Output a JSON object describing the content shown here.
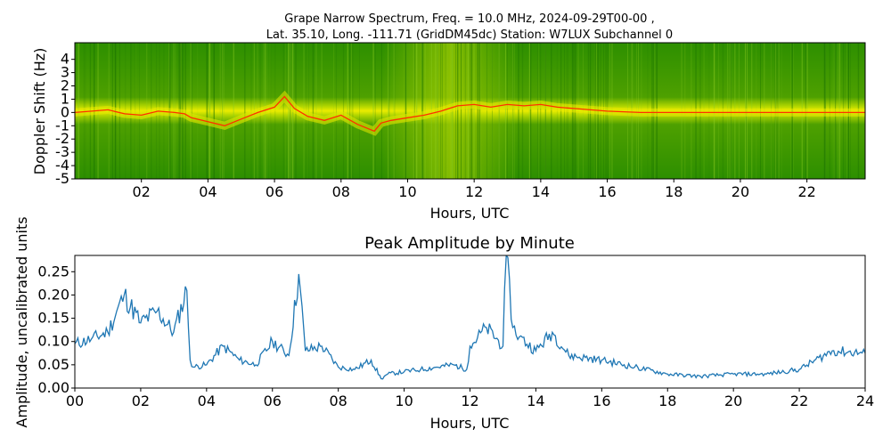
{
  "figure_title": {
    "line1": "Grape Narrow Spectrum, Freq. = 10.0 MHz, 2024-09-29T00-00 ,",
    "line2": "Lat.  35.10, Long. -111.71 (GridDM45dc) Station: W7LUX Subchannel 0"
  },
  "chart_data": [
    {
      "type": "heatmap",
      "title": "",
      "xlabel": "Hours, UTC",
      "ylabel": "Doppler Shift (Hz)",
      "xlim": [
        0,
        23.75
      ],
      "ylim": [
        -5,
        5
      ],
      "x_tick_labels": [
        "02",
        "04",
        "06",
        "08",
        "10",
        "12",
        "14",
        "16",
        "18",
        "20",
        "22"
      ],
      "x_tick_values": [
        2,
        4,
        6,
        8,
        10,
        12,
        14,
        16,
        18,
        20,
        22
      ],
      "y_tick_labels": [
        "4",
        "3",
        "2",
        "1",
        "0",
        "-1",
        "-2",
        "-3",
        "-4",
        "-5"
      ],
      "y_tick_values": [
        4,
        3,
        2,
        1,
        0,
        -1,
        -2,
        -3,
        -4,
        -5
      ],
      "colors": {
        "background": "#1e8a00",
        "mid": "#7fbf00",
        "high": "#e8e800",
        "peak": "#ff2000"
      },
      "doppler_trace": {
        "x": [
          0,
          0.5,
          1,
          1.5,
          2,
          2.5,
          3,
          3.3,
          3.5,
          4,
          4.5,
          5,
          5.5,
          6,
          6.3,
          6.6,
          7,
          7.5,
          8,
          8.5,
          9,
          9.2,
          9.5,
          10,
          10.5,
          11,
          11.5,
          12,
          12.5,
          13,
          13.5,
          14,
          14.5,
          15,
          16,
          17,
          18,
          19,
          20,
          21,
          22,
          23,
          23.75
        ],
        "y": [
          0.0,
          0.1,
          0.2,
          -0.1,
          -0.2,
          0.1,
          0.0,
          -0.1,
          -0.4,
          -0.7,
          -1.0,
          -0.5,
          0.0,
          0.4,
          1.2,
          0.3,
          -0.3,
          -0.6,
          -0.2,
          -0.9,
          -1.4,
          -0.8,
          -0.6,
          -0.4,
          -0.2,
          0.1,
          0.5,
          0.6,
          0.4,
          0.6,
          0.5,
          0.6,
          0.4,
          0.3,
          0.1,
          0.0,
          0.0,
          0.0,
          0.0,
          0.0,
          0.0,
          0.0,
          0.0
        ]
      }
    },
    {
      "type": "line",
      "title": "Peak Amplitude by Minute",
      "xlabel": "Hours, UTC",
      "ylabel": "Amplitude, uncalibrated units",
      "xlim": [
        0,
        24
      ],
      "ylim": [
        0,
        0.285
      ],
      "x_tick_labels": [
        "00",
        "02",
        "04",
        "06",
        "08",
        "10",
        "12",
        "14",
        "16",
        "18",
        "20",
        "22",
        "24"
      ],
      "x_tick_values": [
        0,
        2,
        4,
        6,
        8,
        10,
        12,
        14,
        16,
        18,
        20,
        22,
        24
      ],
      "y_tick_labels": [
        "0.00",
        "0.05",
        "0.10",
        "0.15",
        "0.20",
        "0.25"
      ],
      "y_tick_values": [
        0,
        0.05,
        0.1,
        0.15,
        0.2,
        0.25
      ],
      "line_color": "#1f77b4",
      "series": [
        {
          "x": [
            0,
            0.5,
            1,
            1.5,
            2,
            2.5,
            3,
            3.4,
            3.5,
            3.6,
            4,
            4.5,
            5,
            5.5,
            6,
            6.5,
            6.8,
            7,
            7.5,
            8,
            8.5,
            9,
            9.3,
            9.5,
            10,
            10.5,
            11,
            11.5,
            11.9,
            12,
            12.5,
            13,
            13.1,
            13.3,
            13.5,
            14,
            14.5,
            15,
            16,
            17,
            18,
            19,
            20,
            21,
            22,
            23,
            24
          ],
          "y": [
            0.095,
            0.105,
            0.12,
            0.2,
            0.14,
            0.165,
            0.12,
            0.21,
            0.06,
            0.045,
            0.05,
            0.09,
            0.06,
            0.05,
            0.1,
            0.07,
            0.245,
            0.08,
            0.09,
            0.045,
            0.04,
            0.06,
            0.02,
            0.03,
            0.035,
            0.04,
            0.045,
            0.05,
            0.04,
            0.09,
            0.13,
            0.09,
            0.285,
            0.13,
            0.11,
            0.08,
            0.12,
            0.07,
            0.06,
            0.045,
            0.03,
            0.025,
            0.03,
            0.03,
            0.04,
            0.08,
            0.075
          ]
        }
      ]
    }
  ]
}
